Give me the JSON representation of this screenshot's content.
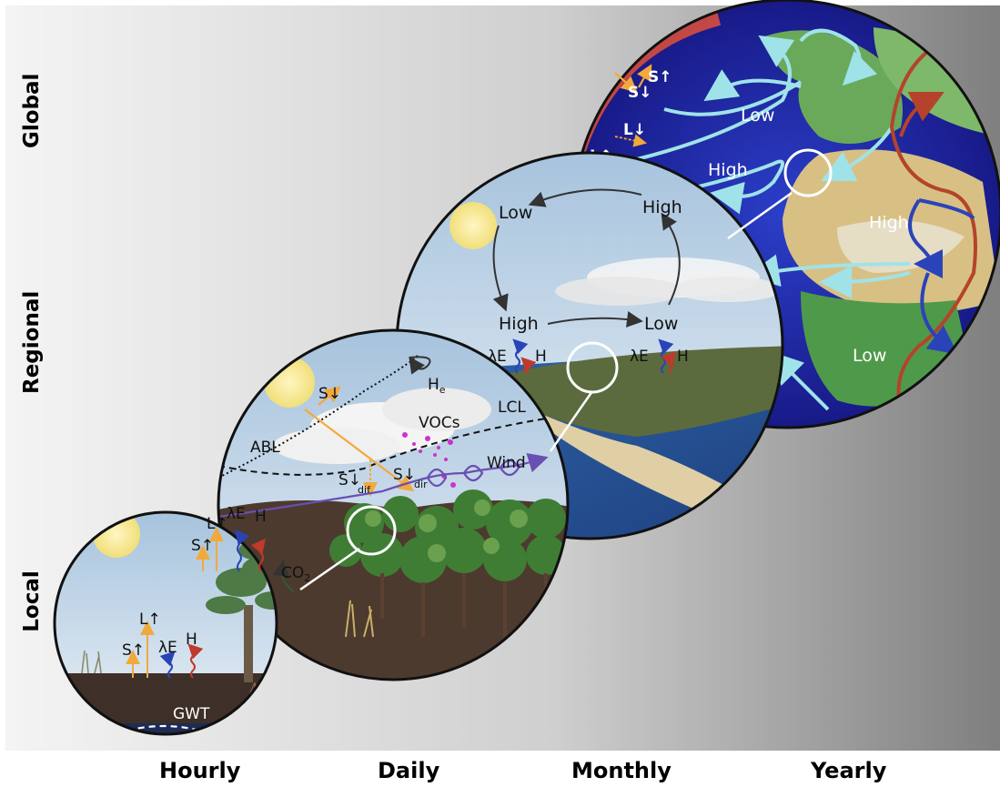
{
  "scales": {
    "spatial": [
      "Global",
      "Regional",
      "Local"
    ],
    "temporal": [
      "Hourly",
      "Daily",
      "Monthly",
      "Yearly"
    ]
  },
  "global_panel": {
    "s_down": "S↓",
    "s_up": "S↑",
    "l_down": "L↓",
    "l_up": "L↑",
    "pressure": [
      "Low",
      "High",
      "High",
      "Low"
    ]
  },
  "regional_panel": {
    "pressure": [
      "Low",
      "High",
      "High",
      "Low"
    ],
    "fluxes": [
      "λE",
      "H",
      "λE",
      "H"
    ]
  },
  "daily_panel": {
    "s_down": "S↓",
    "he": "H",
    "he_sub": "e",
    "lcl": "LCL",
    "vocs": "VOCs",
    "abl": "ABL",
    "wind": "Wind",
    "s_dif": "S↓",
    "s_dif_sub": "dif",
    "s_dir": "S↓",
    "s_dir_sub": "dir"
  },
  "local_panel": {
    "l_up_top": "L↑",
    "s_up_top": "S↑",
    "le_top": "λE",
    "h_top": "H",
    "co2": "CO",
    "co2_sub": "2",
    "l_up": "L↑",
    "s_up": "S↑",
    "le": "λE",
    "h": "H",
    "gwt": "GWT"
  },
  "colors": {
    "shortwave": "#f2a93b",
    "latent": "#2b43b8",
    "sensible": "#c0392b",
    "wind": "#6a4fb3",
    "circulation": "#9fe3e8",
    "jet": "#b5432c"
  }
}
